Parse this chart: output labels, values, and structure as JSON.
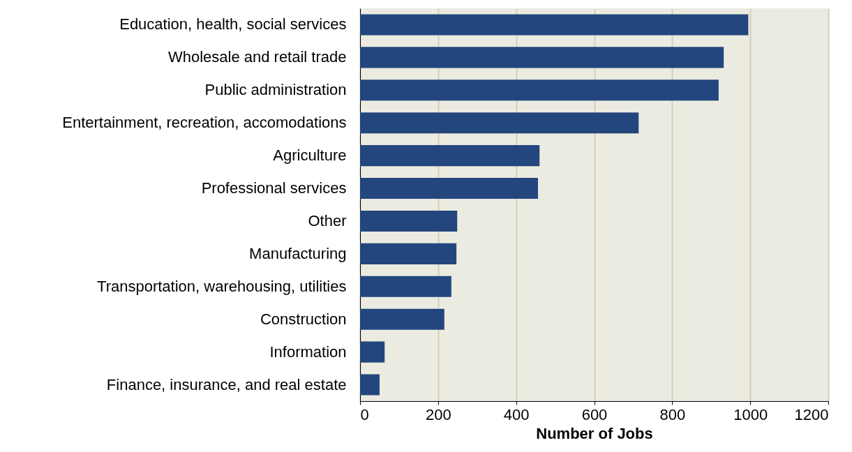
{
  "chart_data": {
    "type": "bar",
    "orientation": "horizontal",
    "xlabel": "Number of Jobs",
    "categories": [
      "Education, health, social services",
      "Wholesale and retail trade",
      "Public administration",
      "Entertainment, recreation, accomodations",
      "Agriculture",
      "Professional services",
      "Other",
      "Manufacturing",
      "Transportation, warehousing, utilities",
      "Construction",
      "Information",
      "Finance, insurance, and real estate"
    ],
    "values": [
      995,
      932,
      919,
      714,
      460,
      456,
      249,
      247,
      234,
      216,
      63,
      50
    ],
    "color": "#23467e",
    "xlim": [
      0,
      1200
    ],
    "xticks": [
      0,
      200,
      400,
      600,
      800,
      1000,
      1200
    ],
    "grid": "x"
  }
}
